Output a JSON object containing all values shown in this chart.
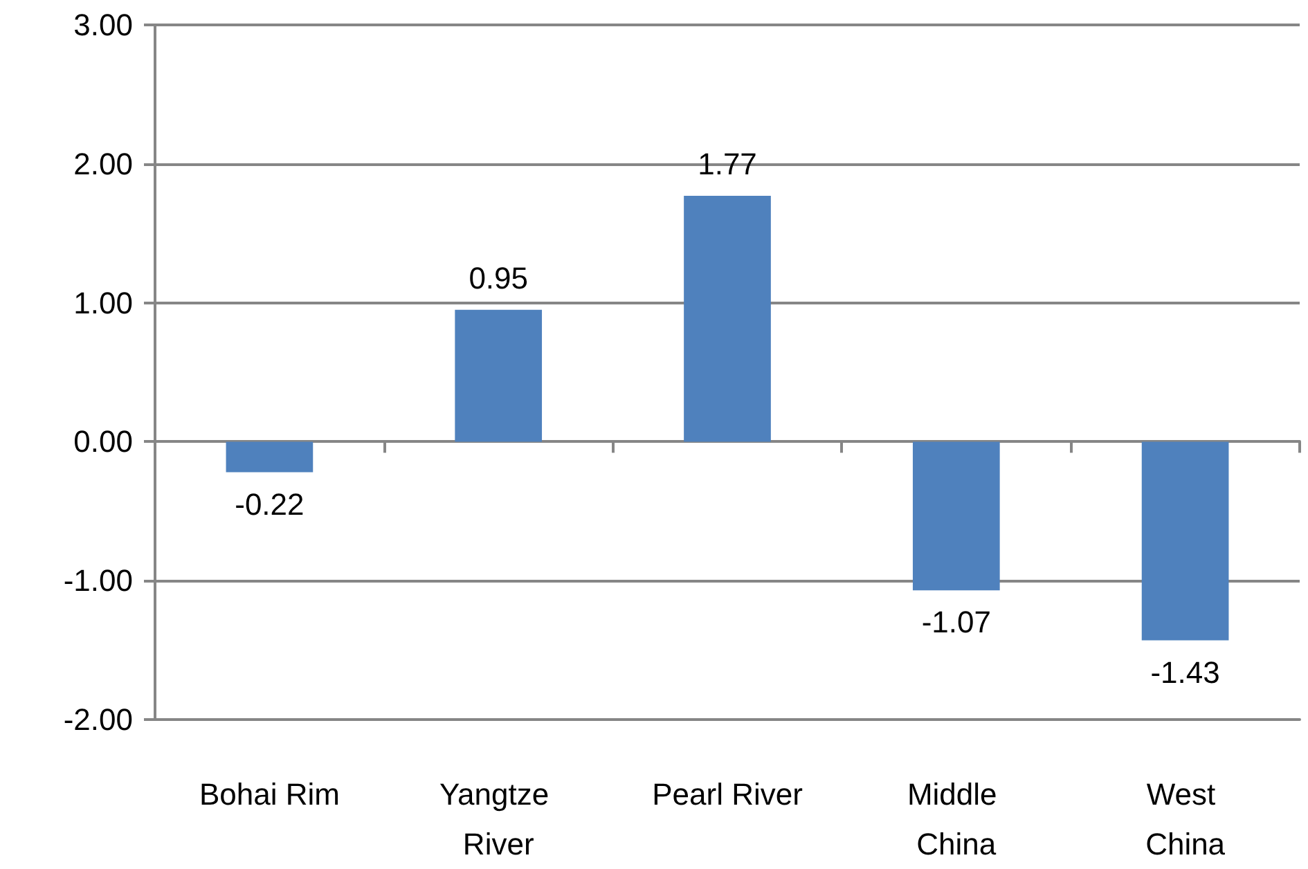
{
  "chart_data": {
    "type": "bar",
    "categories": [
      "Bohai Rim",
      "Yangtze River",
      "Pearl River",
      "Middle China",
      "West China"
    ],
    "values": [
      -0.22,
      0.95,
      1.77,
      -1.07,
      -1.43
    ],
    "color": "#4f81bd",
    "ylim": [
      -2,
      3
    ],
    "yticks": [
      {
        "value": -2,
        "label": "-2.00"
      },
      {
        "value": -1,
        "label": "-1.00"
      },
      {
        "value": 0,
        "label": "0.00"
      },
      {
        "value": 1,
        "label": "1.00"
      },
      {
        "value": 2,
        "label": "2.00"
      },
      {
        "value": 3,
        "label": "3.00"
      }
    ],
    "grid": "y",
    "data_labels": true
  }
}
